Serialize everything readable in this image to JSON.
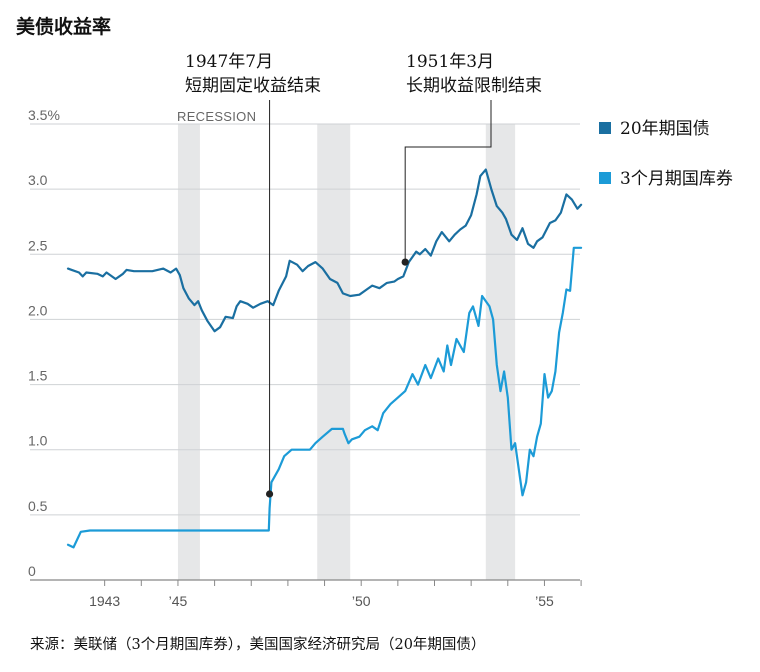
{
  "chart_data": {
    "type": "line",
    "title": "美债收益率",
    "xlabel": "",
    "ylabel": "",
    "xlim": [
      1941.8,
      1956.2
    ],
    "ylim": [
      0,
      3.5
    ],
    "y_ticks": [
      {
        "value": 3.5,
        "label": "3.5%"
      },
      {
        "value": 3.0,
        "label": "3.0"
      },
      {
        "value": 2.5,
        "label": "2.5"
      },
      {
        "value": 2.0,
        "label": "2.0"
      },
      {
        "value": 1.5,
        "label": "1.5"
      },
      {
        "value": 1.0,
        "label": "1.0"
      },
      {
        "value": 0.5,
        "label": "0.5"
      },
      {
        "value": 0,
        "label": "0"
      }
    ],
    "x_ticks": [
      {
        "value": 1943,
        "label": "1943"
      },
      {
        "value": 1945,
        "label": "’45"
      },
      {
        "value": 1950,
        "label": "’50"
      },
      {
        "value": 1955,
        "label": "’55"
      }
    ],
    "recessions": [
      [
        1945.0,
        1945.6
      ],
      [
        1948.8,
        1949.7
      ],
      [
        1953.4,
        1954.2
      ]
    ],
    "recession_label": "RECESSION",
    "series": [
      {
        "name": "20年期国债",
        "color": "#1a6fa1",
        "x": [
          1942.0,
          1942.1,
          1942.3,
          1942.4,
          1942.5,
          1942.8,
          1942.95,
          1943.05,
          1943.3,
          1943.5,
          1943.6,
          1943.8,
          1944.0,
          1944.3,
          1944.6,
          1944.8,
          1944.95,
          1945.05,
          1945.15,
          1945.3,
          1945.45,
          1945.55,
          1945.65,
          1945.8,
          1946.0,
          1946.15,
          1946.3,
          1946.5,
          1946.6,
          1946.7,
          1946.9,
          1947.05,
          1947.25,
          1947.45,
          1947.6,
          1947.75,
          1947.95,
          1948.05,
          1948.25,
          1948.4,
          1948.55,
          1948.75,
          1948.95,
          1949.15,
          1949.35,
          1949.5,
          1949.7,
          1949.95,
          1950.15,
          1950.3,
          1950.5,
          1950.7,
          1950.9,
          1951.0,
          1951.15,
          1951.3,
          1951.5,
          1951.6,
          1951.75,
          1951.9,
          1952.05,
          1952.2,
          1952.4,
          1952.55,
          1952.7,
          1952.85,
          1953.0,
          1953.15,
          1953.25,
          1953.4,
          1953.55,
          1953.7,
          1953.85,
          1953.95,
          1954.1,
          1954.25,
          1954.4,
          1954.55,
          1954.7,
          1954.8,
          1954.95,
          1955.15,
          1955.3,
          1955.45,
          1955.6,
          1955.75,
          1955.9,
          1956.0
        ],
        "values": [
          2.39,
          2.38,
          2.36,
          2.33,
          2.36,
          2.35,
          2.33,
          2.36,
          2.31,
          2.35,
          2.38,
          2.37,
          2.37,
          2.37,
          2.39,
          2.36,
          2.39,
          2.34,
          2.24,
          2.16,
          2.11,
          2.14,
          2.07,
          1.99,
          1.91,
          1.94,
          2.02,
          2.01,
          2.1,
          2.14,
          2.12,
          2.09,
          2.12,
          2.14,
          2.11,
          2.22,
          2.33,
          2.45,
          2.42,
          2.37,
          2.41,
          2.44,
          2.39,
          2.31,
          2.28,
          2.2,
          2.18,
          2.19,
          2.23,
          2.26,
          2.24,
          2.28,
          2.29,
          2.31,
          2.33,
          2.44,
          2.52,
          2.5,
          2.54,
          2.49,
          2.6,
          2.67,
          2.6,
          2.65,
          2.69,
          2.72,
          2.8,
          2.96,
          3.1,
          3.15,
          3.0,
          2.87,
          2.82,
          2.77,
          2.65,
          2.61,
          2.7,
          2.58,
          2.55,
          2.6,
          2.63,
          2.74,
          2.76,
          2.82,
          2.96,
          2.92,
          2.85,
          2.88
        ]
      },
      {
        "name": "3个月期国库券",
        "color": "#1c9bd7",
        "x": [
          1942.0,
          1942.15,
          1942.35,
          1942.6,
          1943.0,
          1945.0,
          1947.0,
          1947.48,
          1947.5,
          1947.55,
          1947.75,
          1947.9,
          1948.1,
          1948.6,
          1948.75,
          1948.95,
          1949.2,
          1949.5,
          1949.55,
          1949.65,
          1949.75,
          1949.95,
          1950.1,
          1950.3,
          1950.45,
          1950.6,
          1950.8,
          1951.0,
          1951.2,
          1951.4,
          1951.55,
          1951.75,
          1951.9,
          1952.1,
          1952.25,
          1952.35,
          1952.45,
          1952.6,
          1952.8,
          1952.95,
          1953.05,
          1953.2,
          1953.3,
          1953.5,
          1953.6,
          1953.7,
          1953.8,
          1953.9,
          1954.0,
          1954.1,
          1954.2,
          1954.3,
          1954.4,
          1954.5,
          1954.6,
          1954.7,
          1954.8,
          1954.9,
          1955.0,
          1955.1,
          1955.2,
          1955.3,
          1955.4,
          1955.5,
          1955.6,
          1955.7,
          1955.8,
          1955.9,
          1956.0
        ],
        "values": [
          0.27,
          0.25,
          0.37,
          0.38,
          0.38,
          0.38,
          0.38,
          0.38,
          0.55,
          0.75,
          0.85,
          0.95,
          1.0,
          1.0,
          1.05,
          1.1,
          1.16,
          1.16,
          1.12,
          1.05,
          1.08,
          1.1,
          1.15,
          1.18,
          1.15,
          1.28,
          1.35,
          1.4,
          1.45,
          1.58,
          1.5,
          1.65,
          1.55,
          1.7,
          1.6,
          1.8,
          1.65,
          1.85,
          1.75,
          2.05,
          2.1,
          1.95,
          2.18,
          2.1,
          2.0,
          1.65,
          1.45,
          1.6,
          1.4,
          1.0,
          1.05,
          0.85,
          0.65,
          0.75,
          1.0,
          0.95,
          1.1,
          1.2,
          1.58,
          1.4,
          1.45,
          1.6,
          1.9,
          2.05,
          2.23,
          2.22,
          2.55,
          2.55,
          2.55
        ]
      }
    ],
    "annotations": [
      {
        "line1": "1947年7月",
        "line2": "短期固定收益结束",
        "x": 1947.5,
        "y": 0.66
      },
      {
        "line1": "1951年3月",
        "line2": "长期收益限制结束",
        "x": 1951.2,
        "y": 2.44
      }
    ],
    "source": "来源：美联储（3个月期国库券），美国国家经济研究局（20年期国债）"
  }
}
